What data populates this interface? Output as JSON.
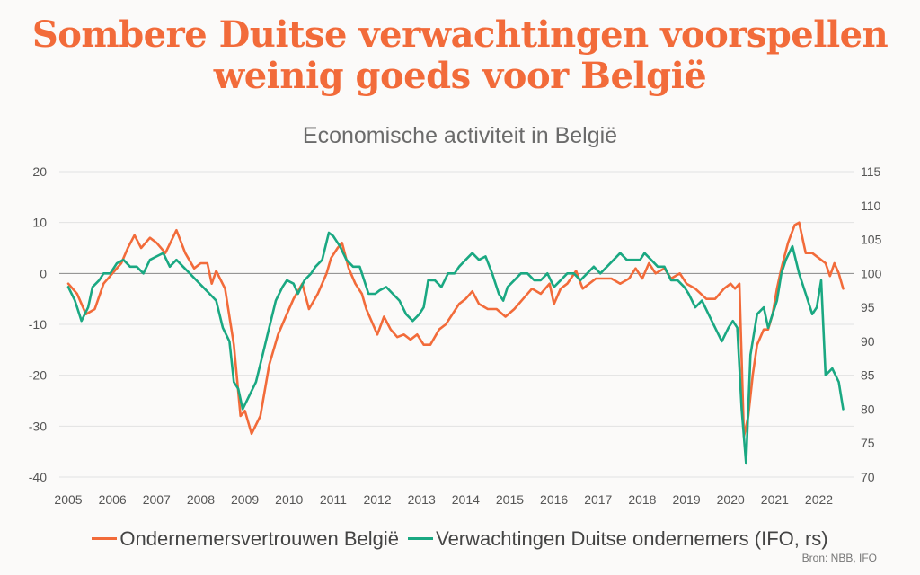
{
  "title": {
    "line1": "Sombere Duitse verwachtingen voorspellen",
    "line2": "weinig goeds voor België"
  },
  "source": "Bron: NBB, IFO",
  "colors": {
    "belgium": "#f26b3a",
    "ifo": "#1aa882",
    "zero_line": "#888888",
    "grid": "#e2e2e2"
  },
  "chart_data": {
    "type": "line",
    "title": "Economische activiteit in België",
    "x_range": [
      2005.0,
      2022.6
    ],
    "x_ticks": [
      "2005",
      "2006",
      "2007",
      "2008",
      "2009",
      "2010",
      "2011",
      "2012",
      "2013",
      "2014",
      "2015",
      "2016",
      "2017",
      "2018",
      "2019",
      "2020",
      "2021",
      "2022"
    ],
    "y_left": {
      "range": [
        -40,
        20
      ],
      "ticks": [
        "20",
        "10",
        "0",
        "-10",
        "-20",
        "-30",
        "-40"
      ]
    },
    "y_right": {
      "range": [
        70,
        115
      ],
      "ticks": [
        "115",
        "110",
        "105",
        "100",
        "95",
        "90",
        "85",
        "80",
        "75",
        "70"
      ]
    },
    "grid": true,
    "series": [
      {
        "name": "Ondernemersvertrouwen België",
        "axis": "left",
        "points": [
          [
            2005.0,
            -2
          ],
          [
            2005.2,
            -4
          ],
          [
            2005.4,
            -8
          ],
          [
            2005.6,
            -7
          ],
          [
            2005.8,
            -2
          ],
          [
            2006.0,
            0
          ],
          [
            2006.2,
            2
          ],
          [
            2006.35,
            5
          ],
          [
            2006.5,
            7.5
          ],
          [
            2006.65,
            5
          ],
          [
            2006.85,
            7
          ],
          [
            2007.0,
            6
          ],
          [
            2007.2,
            4
          ],
          [
            2007.45,
            8.5
          ],
          [
            2007.65,
            4
          ],
          [
            2007.85,
            1
          ],
          [
            2008.0,
            2
          ],
          [
            2008.15,
            2
          ],
          [
            2008.25,
            -2
          ],
          [
            2008.35,
            0.5
          ],
          [
            2008.55,
            -3
          ],
          [
            2008.75,
            -14
          ],
          [
            2008.9,
            -28
          ],
          [
            2009.0,
            -27
          ],
          [
            2009.15,
            -31.5
          ],
          [
            2009.35,
            -28
          ],
          [
            2009.55,
            -18
          ],
          [
            2009.75,
            -12
          ],
          [
            2009.9,
            -9
          ],
          [
            2010.1,
            -5
          ],
          [
            2010.3,
            -2
          ],
          [
            2010.45,
            -7
          ],
          [
            2010.65,
            -4
          ],
          [
            2010.85,
            0
          ],
          [
            2010.95,
            3
          ],
          [
            2011.1,
            5
          ],
          [
            2011.2,
            6
          ],
          [
            2011.35,
            1
          ],
          [
            2011.5,
            -2
          ],
          [
            2011.65,
            -4
          ],
          [
            2011.75,
            -7
          ],
          [
            2011.9,
            -10
          ],
          [
            2012.0,
            -12
          ],
          [
            2012.15,
            -8.5
          ],
          [
            2012.3,
            -11
          ],
          [
            2012.45,
            -12.5
          ],
          [
            2012.6,
            -12
          ],
          [
            2012.75,
            -13
          ],
          [
            2012.9,
            -12
          ],
          [
            2013.05,
            -14
          ],
          [
            2013.2,
            -14
          ],
          [
            2013.4,
            -11
          ],
          [
            2013.55,
            -10
          ],
          [
            2013.7,
            -8
          ],
          [
            2013.85,
            -6
          ],
          [
            2014.0,
            -5
          ],
          [
            2014.15,
            -3.5
          ],
          [
            2014.3,
            -6
          ],
          [
            2014.5,
            -7
          ],
          [
            2014.7,
            -7
          ],
          [
            2014.9,
            -8.5
          ],
          [
            2015.1,
            -7
          ],
          [
            2015.3,
            -5
          ],
          [
            2015.5,
            -3
          ],
          [
            2015.7,
            -4
          ],
          [
            2015.9,
            -2
          ],
          [
            2016.0,
            -6
          ],
          [
            2016.15,
            -3
          ],
          [
            2016.3,
            -2
          ],
          [
            2016.5,
            0.5
          ],
          [
            2016.65,
            -3
          ],
          [
            2016.8,
            -2
          ],
          [
            2016.95,
            -1
          ],
          [
            2017.15,
            -1
          ],
          [
            2017.3,
            -1
          ],
          [
            2017.5,
            -2
          ],
          [
            2017.7,
            -1
          ],
          [
            2017.85,
            1
          ],
          [
            2018.0,
            -1
          ],
          [
            2018.15,
            2
          ],
          [
            2018.3,
            0
          ],
          [
            2018.5,
            1
          ],
          [
            2018.65,
            -1
          ],
          [
            2018.85,
            0
          ],
          [
            2019.0,
            -2
          ],
          [
            2019.2,
            -3
          ],
          [
            2019.45,
            -5
          ],
          [
            2019.65,
            -5
          ],
          [
            2019.85,
            -3
          ],
          [
            2020.0,
            -2
          ],
          [
            2020.1,
            -3
          ],
          [
            2020.2,
            -2
          ],
          [
            2020.3,
            -32
          ],
          [
            2020.4,
            -28
          ],
          [
            2020.5,
            -20
          ],
          [
            2020.6,
            -14
          ],
          [
            2020.75,
            -11
          ],
          [
            2020.85,
            -11
          ],
          [
            2020.95,
            -8
          ],
          [
            2021.05,
            -3
          ],
          [
            2021.15,
            1
          ],
          [
            2021.3,
            6
          ],
          [
            2021.45,
            9.5
          ],
          [
            2021.55,
            10
          ],
          [
            2021.7,
            4
          ],
          [
            2021.85,
            4
          ],
          [
            2022.0,
            3
          ],
          [
            2022.15,
            2
          ],
          [
            2022.25,
            -0.5
          ],
          [
            2022.35,
            2
          ],
          [
            2022.45,
            0
          ],
          [
            2022.55,
            -3
          ]
        ]
      },
      {
        "name": "Verwachtingen Duitse ondernemers (IFO, rs)",
        "axis": "right",
        "points": [
          [
            2005.0,
            98
          ],
          [
            2005.15,
            96
          ],
          [
            2005.3,
            93
          ],
          [
            2005.45,
            95
          ],
          [
            2005.55,
            98
          ],
          [
            2005.7,
            99
          ],
          [
            2005.8,
            100
          ],
          [
            2005.95,
            100
          ],
          [
            2006.1,
            101.5
          ],
          [
            2006.25,
            102
          ],
          [
            2006.4,
            101
          ],
          [
            2006.55,
            101
          ],
          [
            2006.7,
            100
          ],
          [
            2006.85,
            102
          ],
          [
            2007.0,
            102.5
          ],
          [
            2007.15,
            103
          ],
          [
            2007.3,
            101
          ],
          [
            2007.45,
            102
          ],
          [
            2007.6,
            101
          ],
          [
            2007.75,
            100
          ],
          [
            2007.9,
            99
          ],
          [
            2008.05,
            98
          ],
          [
            2008.2,
            97
          ],
          [
            2008.35,
            96
          ],
          [
            2008.5,
            92
          ],
          [
            2008.65,
            90
          ],
          [
            2008.75,
            84
          ],
          [
            2008.85,
            83
          ],
          [
            2008.95,
            80
          ],
          [
            2009.1,
            82
          ],
          [
            2009.25,
            84
          ],
          [
            2009.4,
            88
          ],
          [
            2009.55,
            92
          ],
          [
            2009.7,
            96
          ],
          [
            2009.85,
            98
          ],
          [
            2009.95,
            99
          ],
          [
            2010.1,
            98.5
          ],
          [
            2010.2,
            97
          ],
          [
            2010.35,
            99
          ],
          [
            2010.5,
            100
          ],
          [
            2010.6,
            101
          ],
          [
            2010.75,
            102
          ],
          [
            2010.9,
            106
          ],
          [
            2011.0,
            105.5
          ],
          [
            2011.15,
            104
          ],
          [
            2011.3,
            102
          ],
          [
            2011.45,
            101
          ],
          [
            2011.6,
            101
          ],
          [
            2011.8,
            97
          ],
          [
            2011.95,
            97
          ],
          [
            2012.05,
            97.5
          ],
          [
            2012.2,
            98
          ],
          [
            2012.35,
            97
          ],
          [
            2012.5,
            96
          ],
          [
            2012.65,
            94
          ],
          [
            2012.8,
            93
          ],
          [
            2012.95,
            94
          ],
          [
            2013.05,
            95
          ],
          [
            2013.15,
            99
          ],
          [
            2013.3,
            99
          ],
          [
            2013.45,
            98
          ],
          [
            2013.6,
            100
          ],
          [
            2013.75,
            100
          ],
          [
            2013.85,
            101
          ],
          [
            2014.0,
            102
          ],
          [
            2014.15,
            103
          ],
          [
            2014.3,
            102
          ],
          [
            2014.45,
            102.5
          ],
          [
            2014.6,
            100
          ],
          [
            2014.75,
            97
          ],
          [
            2014.85,
            96
          ],
          [
            2014.95,
            98
          ],
          [
            2015.1,
            99
          ],
          [
            2015.25,
            100
          ],
          [
            2015.4,
            100
          ],
          [
            2015.55,
            99
          ],
          [
            2015.7,
            99
          ],
          [
            2015.85,
            100
          ],
          [
            2016.0,
            98
          ],
          [
            2016.15,
            99
          ],
          [
            2016.3,
            100
          ],
          [
            2016.45,
            100
          ],
          [
            2016.6,
            99
          ],
          [
            2016.75,
            100
          ],
          [
            2016.9,
            101
          ],
          [
            2017.05,
            100
          ],
          [
            2017.2,
            101
          ],
          [
            2017.35,
            102
          ],
          [
            2017.5,
            103
          ],
          [
            2017.65,
            102
          ],
          [
            2017.8,
            102
          ],
          [
            2017.95,
            102
          ],
          [
            2018.05,
            103
          ],
          [
            2018.2,
            102
          ],
          [
            2018.35,
            101
          ],
          [
            2018.5,
            101
          ],
          [
            2018.65,
            99
          ],
          [
            2018.8,
            99
          ],
          [
            2018.95,
            98
          ],
          [
            2019.05,
            97
          ],
          [
            2019.2,
            95
          ],
          [
            2019.35,
            96
          ],
          [
            2019.5,
            94
          ],
          [
            2019.65,
            92
          ],
          [
            2019.8,
            90
          ],
          [
            2019.95,
            92
          ],
          [
            2020.05,
            93
          ],
          [
            2020.15,
            92
          ],
          [
            2020.25,
            80
          ],
          [
            2020.35,
            72
          ],
          [
            2020.45,
            88
          ],
          [
            2020.6,
            94
          ],
          [
            2020.75,
            95
          ],
          [
            2020.85,
            92
          ],
          [
            2020.95,
            94
          ],
          [
            2021.05,
            96
          ],
          [
            2021.15,
            100
          ],
          [
            2021.25,
            102
          ],
          [
            2021.4,
            104
          ],
          [
            2021.55,
            100
          ],
          [
            2021.7,
            97
          ],
          [
            2021.85,
            94
          ],
          [
            2021.95,
            95
          ],
          [
            2022.05,
            99
          ],
          [
            2022.15,
            85
          ],
          [
            2022.3,
            86
          ],
          [
            2022.45,
            84
          ],
          [
            2022.55,
            80
          ]
        ]
      }
    ]
  }
}
